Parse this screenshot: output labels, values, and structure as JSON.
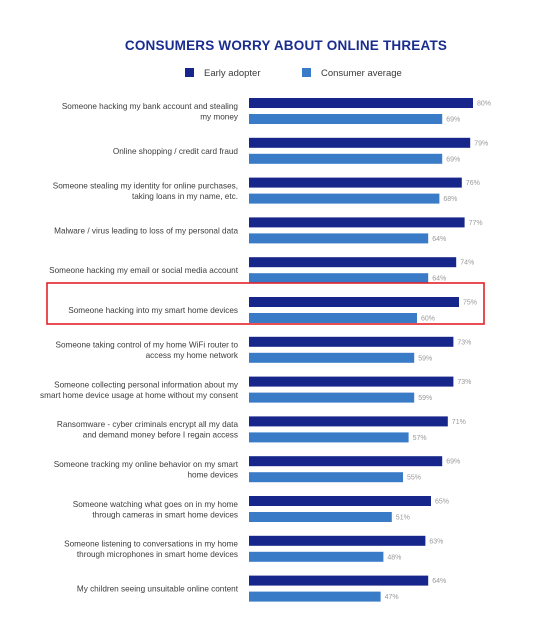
{
  "chart_data": {
    "type": "bar",
    "orientation": "horizontal",
    "title": "CONSUMERS WORRY ABOUT ONLINE THREATS",
    "legend_position": "top",
    "value_suffix": "%",
    "xlim": [
      0,
      100
    ],
    "grid": false,
    "categories": [
      [
        "Someone hacking my bank account and stealing",
        "my money"
      ],
      [
        "Online shopping / credit card fraud"
      ],
      [
        "Someone stealing my identity for online purchases,",
        "taking loans in my name, etc."
      ],
      [
        "Malware / virus leading to loss of my personal data"
      ],
      [
        "Someone hacking my email or social media account"
      ],
      [
        "Someone hacking into my smart home devices"
      ],
      [
        "Someone taking control of my home WiFi router to",
        "access my home network"
      ],
      [
        "Someone collecting personal information about my",
        "smart home device usage at home without my consent"
      ],
      [
        "Ransomware - cyber criminals encrypt all my data",
        "and demand money before I regain access"
      ],
      [
        "Someone tracking my online behavior on my smart",
        "home devices"
      ],
      [
        "Someone watching what goes on in my home",
        "through cameras in smart home devices"
      ],
      [
        "Someone listening to conversations in my home",
        "through microphones in smart home devices"
      ],
      [
        "My children seeing unsuitable online content"
      ]
    ],
    "series": [
      {
        "name": "Early adopter",
        "color": "#17268b",
        "values": [
          80,
          79,
          76,
          77,
          74,
          75,
          73,
          73,
          71,
          69,
          65,
          63,
          64
        ]
      },
      {
        "name": "Consumer average",
        "color": "#3a7bc8",
        "values": [
          69,
          69,
          68,
          64,
          64,
          60,
          59,
          59,
          57,
          55,
          51,
          48,
          47
        ]
      }
    ],
    "highlighted_category_index": 5,
    "highlight_color": "#e32228"
  }
}
